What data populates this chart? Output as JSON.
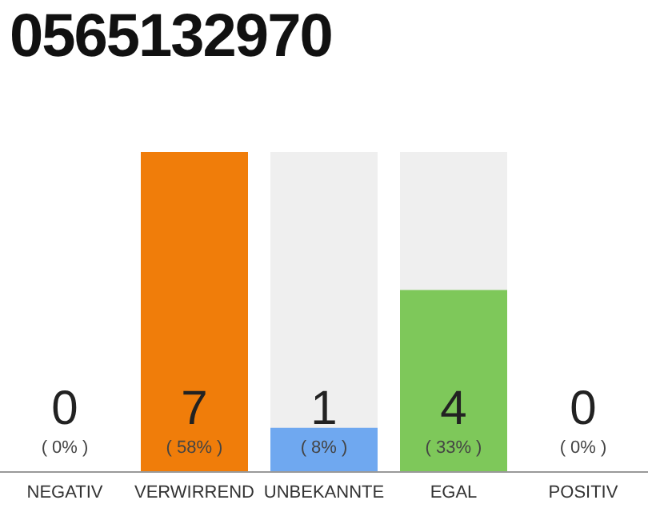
{
  "chart_data": {
    "type": "bar",
    "title": "0565132970",
    "categories": [
      "NEGATIV",
      "VERWIRREND",
      "UNBEKANNTE",
      "EGAL",
      "POSITIV"
    ],
    "values": [
      0,
      58,
      8,
      33,
      0
    ],
    "colors": [
      "#f0f0f0",
      "#f07d0a",
      "#6fa8f0",
      "#7ec85a",
      "#f0f0f0"
    ],
    "value_labels": [
      "( 0% )",
      "( 58% )",
      "( 8% )",
      "( 33% )",
      "( 0% )"
    ],
    "annotations": [
      "0",
      "7",
      "1",
      "4",
      "0"
    ]
  }
}
